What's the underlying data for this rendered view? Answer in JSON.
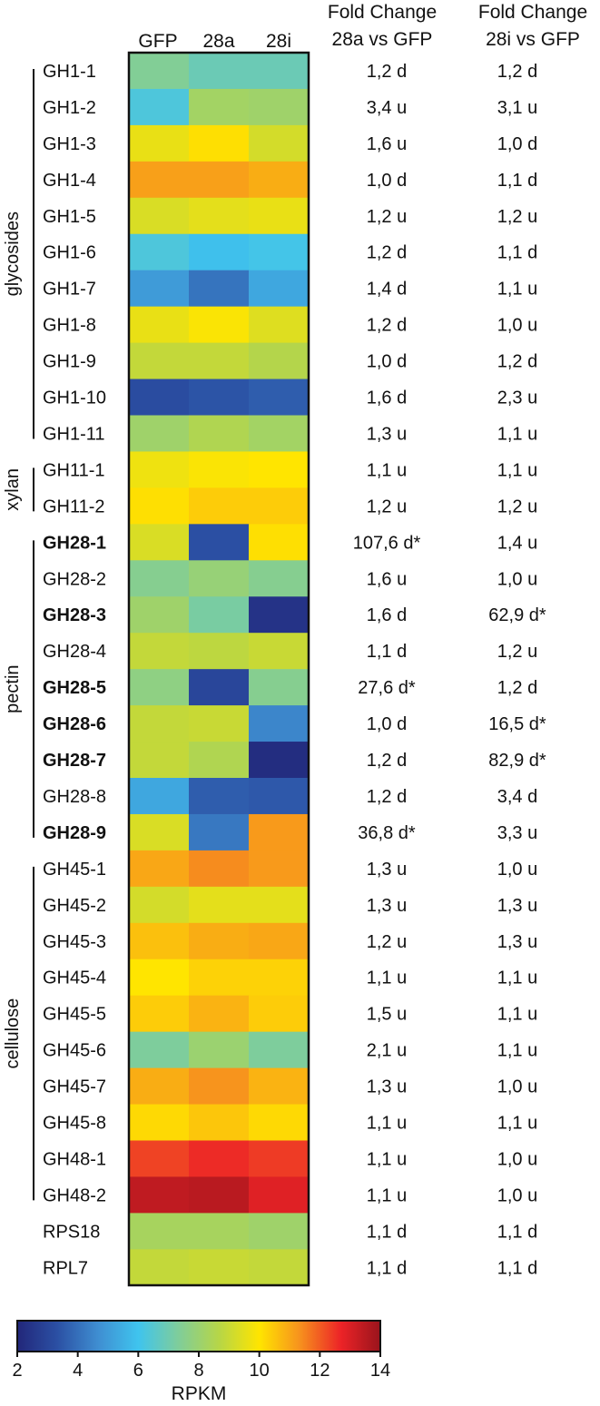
{
  "chart_data": {
    "type": "heatmap",
    "columns": [
      "GFP",
      "28a",
      "28i"
    ],
    "fold_headers": [
      {
        "line1": "Fold Change",
        "line2": "28a vs GFP"
      },
      {
        "line1": "Fold Change",
        "line2": "28i vs GFP"
      }
    ],
    "rows": [
      {
        "label": "GH1-1",
        "bold": false,
        "values": [
          7.4,
          6.9,
          6.9
        ],
        "fold_28a": "1,2 d",
        "fold_28i": "1,2 d"
      },
      {
        "label": "GH1-2",
        "bold": false,
        "values": [
          6.3,
          8.2,
          8.1
        ],
        "fold_28a": "3,4 u",
        "fold_28i": "3,1 u"
      },
      {
        "label": "GH1-3",
        "bold": false,
        "values": [
          9.6,
          10.1,
          9.2
        ],
        "fold_28a": "1,6 u",
        "fold_28i": "1,0 d"
      },
      {
        "label": "GH1-4",
        "bold": false,
        "values": [
          11.1,
          11.1,
          10.9
        ],
        "fold_28a": "1,0 d",
        "fold_28i": "1,1 d"
      },
      {
        "label": "GH1-5",
        "bold": false,
        "values": [
          9.3,
          9.5,
          9.6
        ],
        "fold_28a": "1,2 u",
        "fold_28i": "1,2 u"
      },
      {
        "label": "GH1-6",
        "bold": false,
        "values": [
          6.3,
          5.9,
          6.1
        ],
        "fold_28a": "1,2 d",
        "fold_28i": "1,1 d"
      },
      {
        "label": "GH1-7",
        "bold": false,
        "values": [
          5.0,
          4.1,
          5.3
        ],
        "fold_28a": "1,4 d",
        "fold_28i": "1,1 u"
      },
      {
        "label": "GH1-8",
        "bold": false,
        "values": [
          9.6,
          9.9,
          9.4
        ],
        "fold_28a": "1,2 d",
        "fold_28i": "1,0 u"
      },
      {
        "label": "GH1-9",
        "bold": false,
        "values": [
          8.9,
          8.9,
          8.6
        ],
        "fold_28a": "1,0 d",
        "fold_28i": "1,2 d"
      },
      {
        "label": "GH1-10",
        "bold": false,
        "values": [
          3.2,
          3.4,
          3.6
        ],
        "fold_28a": "1,6 d",
        "fold_28i": "2,3 u"
      },
      {
        "label": "GH1-11",
        "bold": false,
        "values": [
          8.1,
          8.5,
          8.2
        ],
        "fold_28a": "1,3 u",
        "fold_28i": "1,1 u"
      },
      {
        "label": "GH11-1",
        "bold": false,
        "values": [
          9.7,
          9.9,
          10.0
        ],
        "fold_28a": "1,1 u",
        "fold_28i": "1,1 u"
      },
      {
        "label": "GH11-2",
        "bold": false,
        "values": [
          10.1,
          10.4,
          10.4
        ],
        "fold_28a": "1,2 u",
        "fold_28i": "1,2 u"
      },
      {
        "label": "GH28-1",
        "bold": true,
        "values": [
          9.3,
          3.3,
          10.1
        ],
        "fold_28a": "107,6 d*",
        "fold_28i": "1,4 u"
      },
      {
        "label": "GH28-2",
        "bold": false,
        "values": [
          7.5,
          7.9,
          7.5
        ],
        "fold_28a": "1,6 u",
        "fold_28i": "1,0 u"
      },
      {
        "label": "GH28-3",
        "bold": true,
        "values": [
          8.1,
          7.2,
          2.4
        ],
        "fold_28a": "1,6 d",
        "fold_28i": "62,9 d*"
      },
      {
        "label": "GH28-4",
        "bold": false,
        "values": [
          8.9,
          8.8,
          9.0
        ],
        "fold_28a": "1,1 d",
        "fold_28i": "1,2 u"
      },
      {
        "label": "GH28-5",
        "bold": true,
        "values": [
          7.7,
          3.0,
          7.5
        ],
        "fold_28a": "27,6 d*",
        "fold_28i": "1,2 d"
      },
      {
        "label": "GH28-6",
        "bold": true,
        "values": [
          8.9,
          9.0,
          4.5
        ],
        "fold_28a": "1,0 d",
        "fold_28i": "16,5 d*"
      },
      {
        "label": "GH28-7",
        "bold": true,
        "values": [
          8.9,
          8.5,
          2.2
        ],
        "fold_28a": "1,2 d",
        "fold_28i": "82,9 d*"
      },
      {
        "label": "GH28-8",
        "bold": false,
        "values": [
          5.3,
          3.6,
          3.5
        ],
        "fold_28a": "1,2 d",
        "fold_28i": "3,4 d"
      },
      {
        "label": "GH28-9",
        "bold": true,
        "values": [
          9.3,
          4.2,
          11.2
        ],
        "fold_28a": "36,8 d*",
        "fold_28i": "3,3 u"
      },
      {
        "label": "GH45-1",
        "bold": false,
        "values": [
          11.0,
          11.4,
          11.2
        ],
        "fold_28a": "1,3 u",
        "fold_28i": "1,0 u"
      },
      {
        "label": "GH45-2",
        "bold": false,
        "values": [
          9.2,
          9.5,
          9.5
        ],
        "fold_28a": "1,3 u",
        "fold_28i": "1,3 u"
      },
      {
        "label": "GH45-3",
        "bold": false,
        "values": [
          10.6,
          10.9,
          11.0
        ],
        "fold_28a": "1,2 u",
        "fold_28i": "1,3 u"
      },
      {
        "label": "GH45-4",
        "bold": false,
        "values": [
          10.0,
          10.3,
          10.3
        ],
        "fold_28a": "1,1 u",
        "fold_28i": "1,1 u"
      },
      {
        "label": "GH45-5",
        "bold": false,
        "values": [
          10.4,
          10.8,
          10.4
        ],
        "fold_28a": "1,5 u",
        "fold_28i": "1,1 u"
      },
      {
        "label": "GH45-6",
        "bold": false,
        "values": [
          7.3,
          8.0,
          7.3
        ],
        "fold_28a": "2,1 u",
        "fold_28i": "1,1 u"
      },
      {
        "label": "GH45-7",
        "bold": false,
        "values": [
          10.9,
          11.3,
          10.8
        ],
        "fold_28a": "1,3 u",
        "fold_28i": "1,0 u"
      },
      {
        "label": "GH45-8",
        "bold": false,
        "values": [
          10.2,
          10.5,
          10.2
        ],
        "fold_28a": "1,1 u",
        "fold_28i": "1,1 u"
      },
      {
        "label": "GH48-1",
        "bold": false,
        "values": [
          12.3,
          12.6,
          12.4
        ],
        "fold_28a": "1,1 u",
        "fold_28i": "1,0 u"
      },
      {
        "label": "GH48-2",
        "bold": false,
        "values": [
          13.4,
          13.5,
          12.9
        ],
        "fold_28a": "1,1 u",
        "fold_28i": "1,0 u"
      },
      {
        "label": "RPS18",
        "bold": false,
        "values": [
          8.3,
          8.3,
          8.1
        ],
        "fold_28a": "1,1 d",
        "fold_28i": "1,1 d"
      },
      {
        "label": "RPL7",
        "bold": false,
        "values": [
          8.9,
          9.0,
          8.9
        ],
        "fold_28a": "1,1 d",
        "fold_28i": "1,1 d"
      }
    ],
    "groups": [
      {
        "name": "glycosides",
        "from": 0,
        "to": 10
      },
      {
        "name": "xylan",
        "from": 11,
        "to": 12
      },
      {
        "name": "pectin",
        "from": 13,
        "to": 21
      },
      {
        "name": "cellulose",
        "from": 22,
        "to": 31
      }
    ],
    "colorbar": {
      "label": "RPKM",
      "min": 2,
      "max": 14,
      "ticks": [
        2,
        4,
        6,
        8,
        10,
        12,
        14
      ],
      "stops": [
        {
          "value": 2,
          "color": "#22277a"
        },
        {
          "value": 3.3,
          "color": "#2b4fa3"
        },
        {
          "value": 4.7,
          "color": "#3f8fd2"
        },
        {
          "value": 6,
          "color": "#3fc4ee"
        },
        {
          "value": 7.3,
          "color": "#7ecd9c"
        },
        {
          "value": 8.7,
          "color": "#b8d645"
        },
        {
          "value": 10,
          "color": "#ffe500"
        },
        {
          "value": 11.3,
          "color": "#f7941d"
        },
        {
          "value": 12.7,
          "color": "#ec2327"
        },
        {
          "value": 14,
          "color": "#99141c"
        }
      ]
    }
  }
}
